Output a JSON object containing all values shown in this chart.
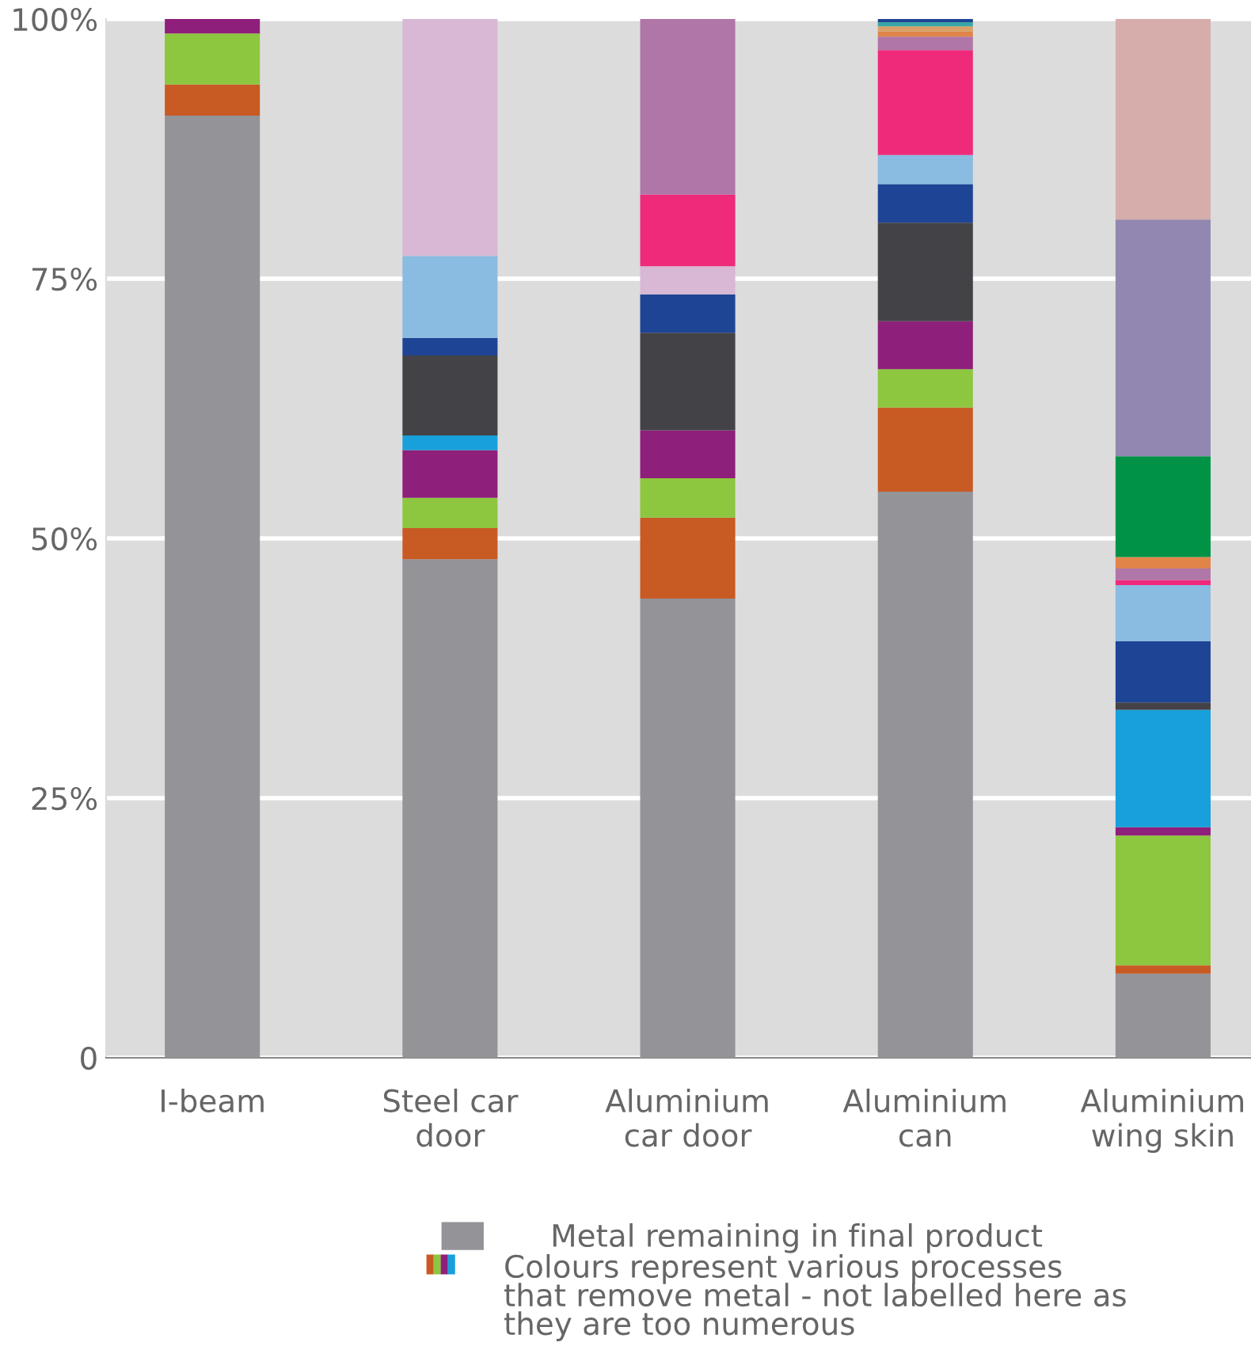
{
  "chart_data": {
    "type": "bar",
    "stacked": true,
    "categories": [
      "I-beam",
      "Steel car\ndoor",
      "Aluminium\ncar door",
      "Aluminium\ncan",
      "Aluminium\nwing skin"
    ],
    "ylim": [
      0,
      100
    ],
    "yticks": [
      0,
      {
        "value": 25,
        "label": "25%"
      },
      {
        "value": 50,
        "label": "50%"
      },
      {
        "value": 75,
        "label": "75%"
      },
      {
        "value": 100,
        "label": "100%"
      }
    ],
    "grid": "y",
    "legend": "bottom",
    "series": [
      {
        "name": "Metal remaining in final product",
        "color": "#939398",
        "values": [
          90.7,
          48.0,
          44.2,
          54.5,
          8.1
        ]
      },
      {
        "color": "#c85a24",
        "values": [
          3.0,
          3.0,
          7.8,
          8.1,
          0.8
        ]
      },
      {
        "color": "#8dc63f",
        "values": [
          4.9,
          2.9,
          3.8,
          3.7,
          12.5
        ]
      },
      {
        "color": "#8e1f7a",
        "values": [
          1.4,
          4.6,
          4.6,
          4.6,
          0.8
        ]
      },
      {
        "colors": [
          null,
          "#17a0db",
          "#434347",
          "#434347",
          "#17a0db"
        ],
        "values": [
          null,
          1.4,
          9.4,
          9.5,
          11.3
        ]
      },
      {
        "colors": [
          null,
          "#434347",
          "#1e4495",
          "#1e4495",
          "#434347"
        ],
        "values": [
          null,
          7.7,
          3.7,
          3.7,
          0.7
        ]
      },
      {
        "colors": [
          null,
          "#1e4495",
          "#d8b8d5",
          "#8abbe0",
          "#1e4495"
        ],
        "values": [
          null,
          1.7,
          2.7,
          2.8,
          5.9
        ]
      },
      {
        "colors": [
          null,
          "#8abbe0",
          "#ef2a7b",
          "#ef2a7b",
          "#8abbe0"
        ],
        "values": [
          null,
          7.9,
          6.9,
          10.1,
          5.4
        ]
      },
      {
        "colors": [
          null,
          "#d8b8d5",
          "#b076a8",
          "#b076a8",
          "#ef2a7b"
        ],
        "values": [
          null,
          22.8,
          16.9,
          1.3,
          0.5
        ]
      },
      {
        "colors": [
          null,
          null,
          null,
          "#e0844a",
          "#b076a8"
        ],
        "values": [
          null,
          null,
          null,
          0.5,
          1.1
        ]
      },
      {
        "colors": [
          null,
          null,
          null,
          "#d9a066",
          "#e0844a"
        ],
        "values": [
          null,
          null,
          null,
          0.5,
          1.1
        ]
      },
      {
        "colors": [
          null,
          null,
          null,
          "#3aa6a8",
          "#009245"
        ],
        "values": [
          null,
          null,
          null,
          0.4,
          9.7
        ]
      },
      {
        "colors": [
          null,
          null,
          null,
          "#1e4495",
          "#9287b0"
        ],
        "values": [
          null,
          null,
          null,
          0.3,
          22.8
        ]
      },
      {
        "colors": [
          null,
          null,
          null,
          null,
          "#d6adab"
        ],
        "values": [
          null,
          null,
          null,
          null,
          19.3
        ]
      }
    ],
    "annotations": [
      "Colours represent various processes\nthat remove metal - not labelled here as\nthey are too numerous"
    ]
  }
}
